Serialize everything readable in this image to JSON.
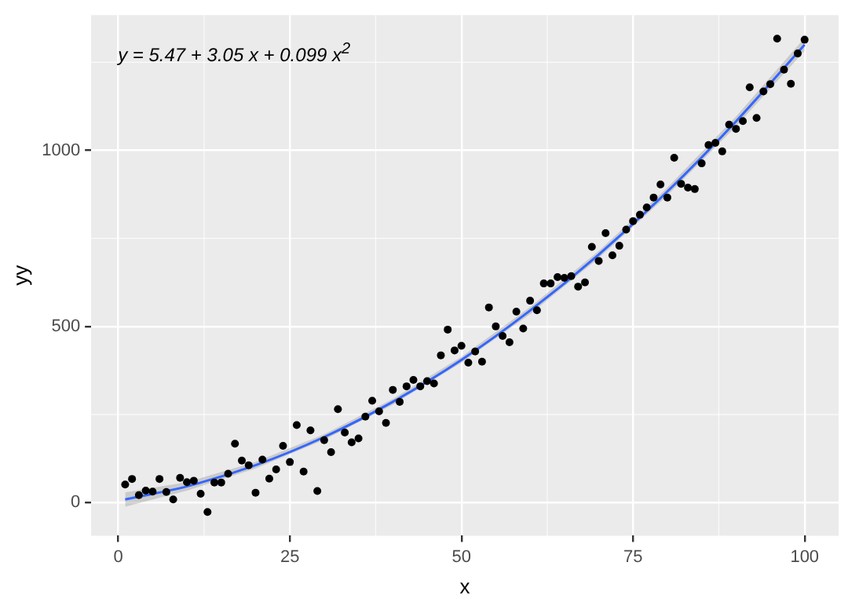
{
  "chart_data": {
    "type": "scatter",
    "xlabel": "x",
    "ylabel": "yy",
    "annotations": [
      "y = 5.47 + 3.05 x + 0.099 x$^{2}$"
    ],
    "xlim": [
      -3.95,
      104.95
    ],
    "ylim": [
      -94,
      1384
    ],
    "xticks": [
      0,
      25,
      50,
      75,
      100
    ],
    "yticks": [
      0,
      500,
      1000
    ],
    "grid": true,
    "legend": false,
    "series": [
      {
        "marker": "circle",
        "color": "#000000",
        "x": [
          1,
          2,
          3,
          4,
          5,
          6,
          7,
          8,
          9,
          10,
          11,
          12,
          13,
          14,
          15,
          16,
          17,
          18,
          19,
          20,
          21,
          22,
          23,
          24,
          25,
          26,
          27,
          28,
          29,
          30,
          31,
          32,
          33,
          34,
          35,
          36,
          37,
          38,
          39,
          40,
          41,
          42,
          43,
          44,
          45,
          46,
          47,
          48,
          49,
          50,
          51,
          52,
          53,
          54,
          55,
          56,
          57,
          58,
          59,
          60,
          61,
          62,
          63,
          64,
          65,
          66,
          67,
          68,
          69,
          70,
          71,
          72,
          73,
          74,
          75,
          76,
          77,
          78,
          79,
          80,
          81,
          82,
          83,
          84,
          85,
          86,
          87,
          88,
          89,
          90,
          91,
          92,
          93,
          94,
          95,
          96,
          97,
          98,
          99,
          100
        ],
        "values": [
          51,
          67,
          21,
          34,
          31,
          67,
          30,
          9,
          70,
          58,
          62,
          25,
          -27,
          57,
          57,
          82,
          167,
          119,
          106,
          28,
          122,
          68,
          94,
          161,
          115,
          220,
          88,
          205,
          33,
          177,
          143,
          265,
          199,
          171,
          182,
          244,
          289,
          259,
          226,
          320,
          286,
          330,
          348,
          330,
          345,
          338,
          418,
          491,
          432,
          445,
          397,
          429,
          400,
          554,
          500,
          473,
          455,
          542,
          494,
          573,
          546,
          622,
          622,
          640,
          638,
          643,
          613,
          625,
          726,
          686,
          765,
          702,
          729,
          775,
          799,
          817,
          838,
          866,
          903,
          866,
          979,
          905,
          894,
          890,
          963,
          1015,
          1021,
          997,
          1073,
          1061,
          1083,
          1179,
          1092,
          1167,
          1188,
          1317,
          1229,
          1189,
          1275,
          1314
        ]
      },
      {
        "type": "line",
        "marker": "none",
        "color": "#3366ff",
        "x": [
          1,
          10,
          20,
          30,
          40,
          50,
          60,
          70,
          80,
          90,
          100
        ],
        "values": [
          9,
          46,
          106,
          186,
          286,
          405,
          545,
          704,
          883,
          1082,
          1300
        ],
        "lower": [
          -12,
          34,
          97,
          178,
          278,
          397,
          535,
          694,
          872,
          1068,
          1282
        ],
        "upper": [
          29,
          58,
          115,
          194,
          294,
          414,
          555,
          714,
          894,
          1096,
          1319
        ]
      }
    ]
  }
}
